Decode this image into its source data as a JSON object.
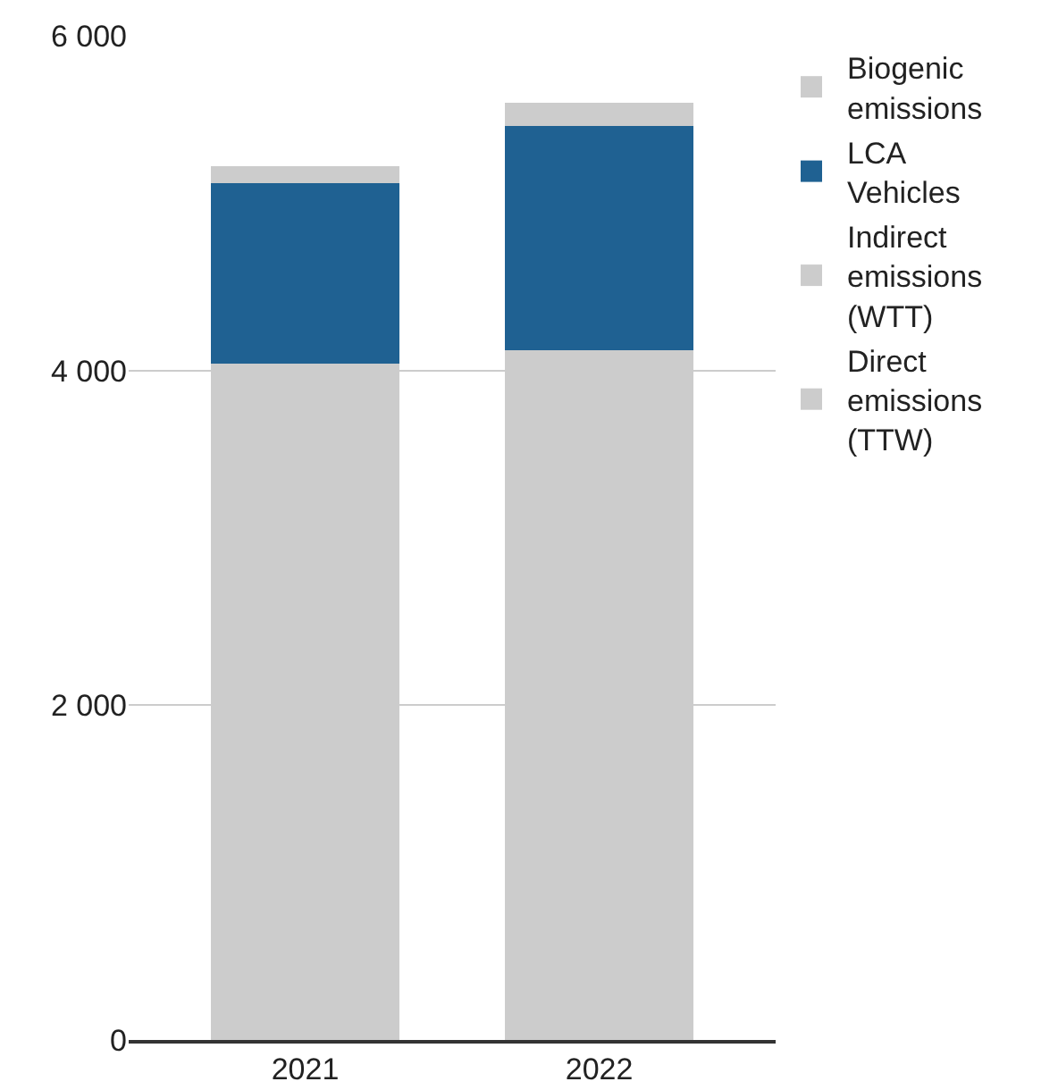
{
  "chart_data": {
    "type": "bar",
    "stacked": true,
    "categories": [
      "2021",
      "2022"
    ],
    "series": [
      {
        "name": "Direct emissions (TTW)",
        "color": "#cccccc",
        "values": [
          4040,
          4120
        ]
      },
      {
        "name": "Indirect emissions (WTT)",
        "color": "#cccccc",
        "values": [
          null,
          null
        ]
      },
      {
        "name": "LCA Vehicles",
        "color": "#1f6192",
        "values": [
          1080,
          1340
        ]
      },
      {
        "name": "Biogenic emissions",
        "color": "#cccccc",
        "values": [
          100,
          140
        ]
      }
    ],
    "ylim": [
      0,
      6000
    ],
    "yticks": [
      0,
      {
        "value": 2000,
        "label": "2 000"
      },
      {
        "value": 4000,
        "label": "4 000"
      },
      {
        "value": 6000,
        "label": "6 000"
      }
    ],
    "grid": "y",
    "legend": "top right"
  }
}
